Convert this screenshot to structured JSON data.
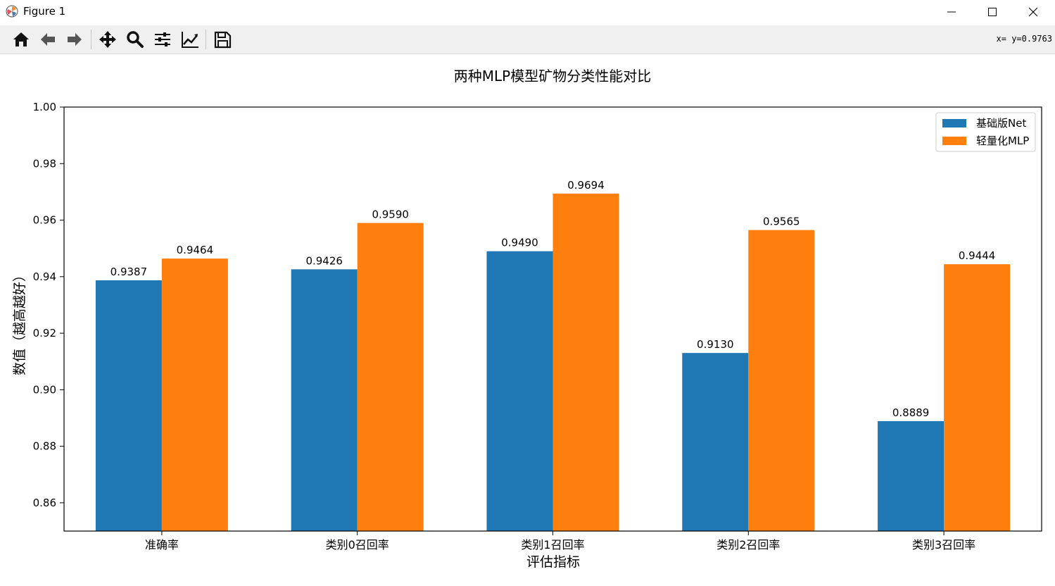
{
  "window": {
    "title": "Figure 1"
  },
  "toolbar": {
    "coords": "x= y=0.9763"
  },
  "colors": {
    "series0": "#1f77b4",
    "series1": "#ff7f0e",
    "toolbar_bg": "#f0f0f0"
  },
  "chart_data": {
    "type": "bar",
    "title": "两种MLP模型矿物分类性能对比",
    "xlabel": "评估指标",
    "ylabel": "数值（越高越好）",
    "categories": [
      "准确率",
      "类别0召回率",
      "类别1召回率",
      "类别2召回率",
      "类别3召回率"
    ],
    "series": [
      {
        "name": "基础版Net",
        "values": [
          0.9387,
          0.9426,
          0.949,
          0.913,
          0.8889
        ],
        "labels": [
          "0.9387",
          "0.9426",
          "0.9490",
          "0.9130",
          "0.8889"
        ]
      },
      {
        "name": "轻量化MLP",
        "values": [
          0.9464,
          0.959,
          0.9694,
          0.9565,
          0.9444
        ],
        "labels": [
          "0.9464",
          "0.9590",
          "0.9694",
          "0.9565",
          "0.9444"
        ]
      }
    ],
    "ylim": [
      0.85,
      1.0
    ],
    "yticks": [
      "0.86",
      "0.88",
      "0.90",
      "0.92",
      "0.94",
      "0.96",
      "0.98",
      "1.00"
    ],
    "legend": "top-right",
    "grid": false
  }
}
